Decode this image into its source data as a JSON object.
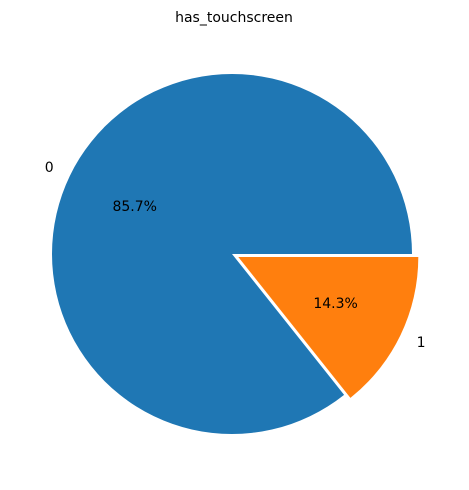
{
  "chart_data": {
    "type": "pie",
    "title": "has_touchscreen",
    "categories": [
      "0",
      "1"
    ],
    "values": [
      85.7,
      14.3
    ],
    "value_labels": [
      "85.7%",
      "14.3%"
    ],
    "colors": [
      "#1f77b4",
      "#ff7f0e"
    ],
    "exploded": [
      false,
      true
    ],
    "start_angle_deg": 0,
    "direction": "counterclockwise",
    "legend": "none",
    "grid": false
  }
}
